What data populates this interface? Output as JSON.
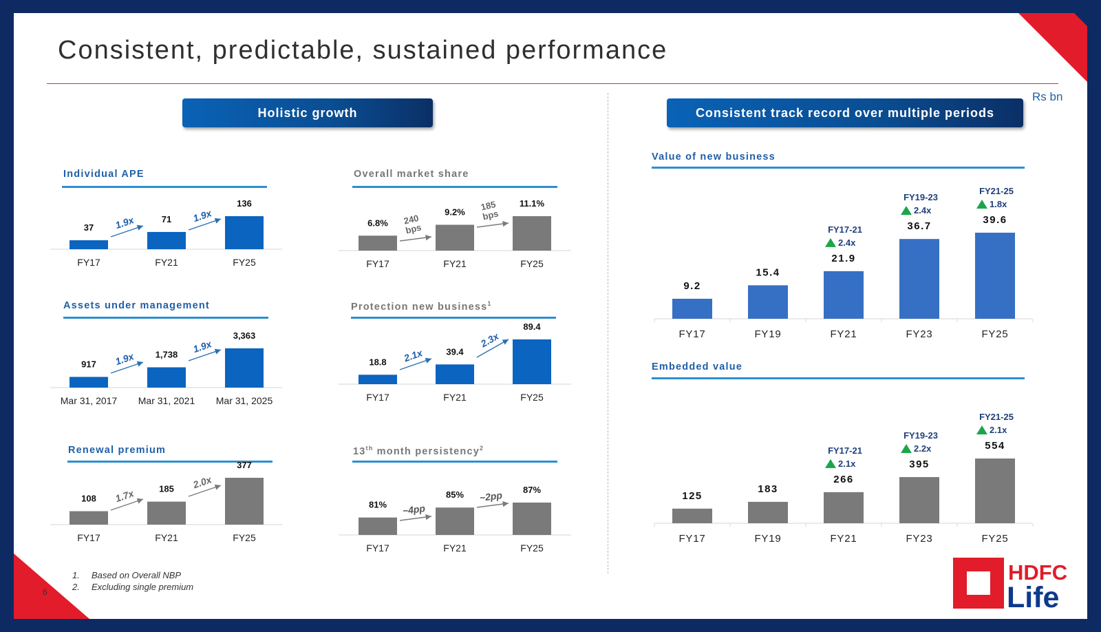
{
  "slide": {
    "title": "Consistent, predictable, sustained performance",
    "unit_label": "Rs bn",
    "page_number": "6"
  },
  "left_panel": {
    "header": "Holistic growth"
  },
  "right_panel": {
    "header": "Consistent track record over multiple periods"
  },
  "colors": {
    "blue_bar": "#0a64c0",
    "gray_bar": "#7a7a7a",
    "right_blue": "#3570c4",
    "green": "#1aa64a",
    "rule_blue": "#2b8fd0"
  },
  "chart_data": [
    {
      "id": "individual-ape",
      "type": "bar",
      "title": "Individual APE",
      "color": "blue",
      "categories": [
        "FY17",
        "FY21",
        "FY25"
      ],
      "values": [
        37,
        71,
        136
      ],
      "value_labels": [
        "37",
        "71",
        "136"
      ],
      "growth_labels": [
        "1.9x",
        "1.9x"
      ],
      "ylim": [
        0,
        136
      ]
    },
    {
      "id": "overall-market-share",
      "type": "bar",
      "title": "Overall market share",
      "color": "gray",
      "categories": [
        "FY17",
        "FY21",
        "FY25"
      ],
      "values": [
        6.8,
        9.2,
        11.1
      ],
      "value_labels": [
        "6.8%",
        "9.2%",
        "11.1%"
      ],
      "growth_labels": [
        [
          "240",
          "bps"
        ],
        [
          "185",
          "bps"
        ]
      ],
      "ylim": [
        3.5,
        11.1
      ]
    },
    {
      "id": "assets-under-management",
      "type": "bar",
      "title": "Assets under management",
      "color": "blue",
      "categories": [
        "Mar 31, 2017",
        "Mar 31, 2021",
        "Mar 31, 2025"
      ],
      "values": [
        917,
        1738,
        3363
      ],
      "value_labels": [
        "917",
        "1,738",
        "3,363"
      ],
      "growth_labels": [
        "1.9x",
        "1.9x"
      ],
      "ylim": [
        0,
        3363
      ]
    },
    {
      "id": "protection-new-business",
      "type": "bar",
      "title": "Protection new business",
      "title_sup": "1",
      "color": "blue",
      "categories": [
        "FY17",
        "FY21",
        "FY25"
      ],
      "values": [
        18.8,
        39.4,
        89.4
      ],
      "value_labels": [
        "18.8",
        "39.4",
        "89.4"
      ],
      "growth_labels": [
        "2.1x",
        "2.3x"
      ],
      "ylim": [
        0,
        89.4
      ]
    },
    {
      "id": "renewal-premium",
      "type": "bar",
      "title": "Renewal premium",
      "color": "gray",
      "categories": [
        "FY17",
        "FY21",
        "FY25"
      ],
      "values": [
        108,
        185,
        377
      ],
      "value_labels": [
        "108",
        "185",
        "377"
      ],
      "growth_labels": [
        "1.7x",
        "2.0x"
      ],
      "ylim": [
        0,
        377
      ]
    },
    {
      "id": "13th-month-persistency",
      "type": "bar",
      "title_pre": "13",
      "title_th": "th",
      "title": " month persistency",
      "title_sup": "2",
      "color": "gray",
      "categories": [
        "FY17",
        "FY21",
        "FY25"
      ],
      "values": [
        81,
        85,
        87
      ],
      "value_labels": [
        "81%",
        "85%",
        "87%"
      ],
      "growth_labels": [
        "~4pp",
        "~2pp"
      ],
      "ylim": [
        74,
        87
      ]
    },
    {
      "id": "value-of-new-business",
      "type": "bar",
      "title": "Value of new business",
      "color": "rightblue",
      "categories": [
        "FY17",
        "FY19",
        "FY21",
        "FY23",
        "FY25"
      ],
      "values": [
        9.2,
        15.4,
        21.9,
        36.7,
        39.6
      ],
      "value_labels": [
        "9.2",
        "15.4",
        "21.9",
        "36.7",
        "39.6"
      ],
      "callouts": [
        {
          "index": 2,
          "period": "FY17-21",
          "growth": "2.4x"
        },
        {
          "index": 3,
          "period": "FY19-23",
          "growth": "2.4x"
        },
        {
          "index": 4,
          "period": "FY21-25",
          "growth": "1.8x"
        }
      ],
      "ylim": [
        0,
        39.6
      ]
    },
    {
      "id": "embedded-value",
      "type": "bar",
      "title": "Embedded value",
      "color": "gray",
      "categories": [
        "FY17",
        "FY19",
        "FY21",
        "FY23",
        "FY25"
      ],
      "values": [
        125,
        183,
        266,
        395,
        554
      ],
      "value_labels": [
        "125",
        "183",
        "266",
        "395",
        "554"
      ],
      "callouts": [
        {
          "index": 2,
          "period": "FY17-21",
          "growth": "2.1x"
        },
        {
          "index": 3,
          "period": "FY19-23",
          "growth": "2.2x"
        },
        {
          "index": 4,
          "period": "FY21-25",
          "growth": "2.1x"
        }
      ],
      "ylim": [
        0,
        554
      ]
    }
  ],
  "footnotes": [
    {
      "num": "1.",
      "text": "Based on Overall NBP"
    },
    {
      "num": "2.",
      "text": "Excluding single premium"
    }
  ],
  "logo": {
    "line1": "HDFC",
    "line2": "Life"
  }
}
